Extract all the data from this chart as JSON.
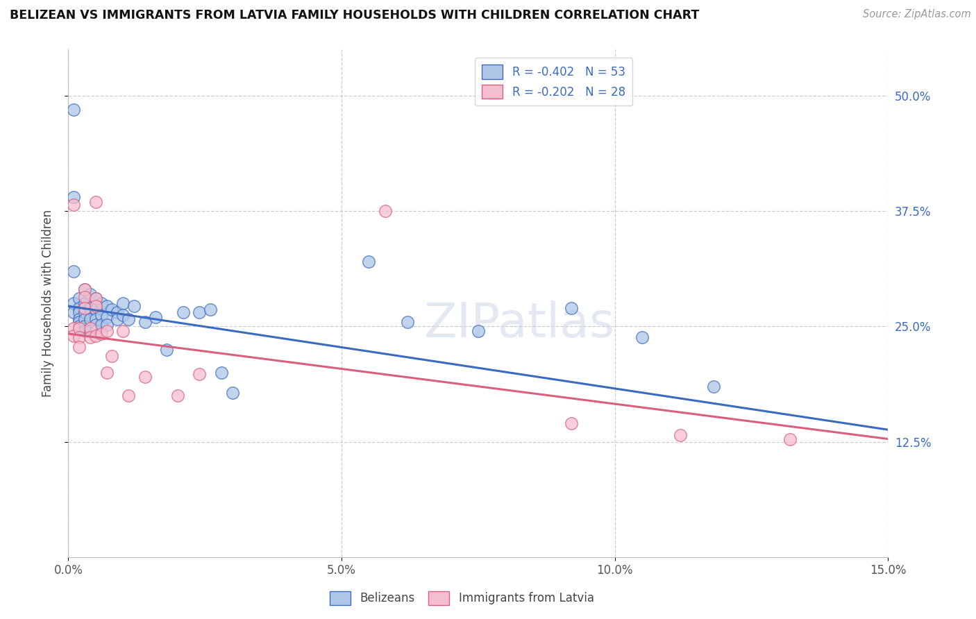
{
  "title": "BELIZEAN VS IMMIGRANTS FROM LATVIA FAMILY HOUSEHOLDS WITH CHILDREN CORRELATION CHART",
  "source": "Source: ZipAtlas.com",
  "ylabel": "Family Households with Children",
  "legend_blue_label": "R = -0.402   N = 53",
  "legend_pink_label": "R = -0.202   N = 28",
  "xlim": [
    0.0,
    0.15
  ],
  "ylim": [
    0.0,
    0.55
  ],
  "xticks": [
    0.0,
    0.05,
    0.1,
    0.15
  ],
  "xtick_labels": [
    "0.0%",
    "5.0%",
    "10.0%",
    "15.0%"
  ],
  "yticks": [
    0.125,
    0.25,
    0.375,
    0.5
  ],
  "ytick_labels": [
    "12.5%",
    "25.0%",
    "37.5%",
    "50.0%"
  ],
  "watermark": "ZIPatlas",
  "blue_color": "#aec6e8",
  "pink_color": "#f5bece",
  "blue_line_color": "#3a6bbf",
  "pink_line_color": "#d95f7f",
  "blue_trend_x0": 0.0,
  "blue_trend_y0": 0.272,
  "blue_trend_x1": 0.15,
  "blue_trend_y1": 0.138,
  "pink_trend_x0": 0.0,
  "pink_trend_y0": 0.242,
  "pink_trend_x1": 0.15,
  "pink_trend_y1": 0.128,
  "belizean_x": [
    0.001,
    0.001,
    0.001,
    0.001,
    0.001,
    0.002,
    0.002,
    0.002,
    0.002,
    0.002,
    0.002,
    0.003,
    0.003,
    0.003,
    0.003,
    0.003,
    0.003,
    0.004,
    0.004,
    0.004,
    0.004,
    0.005,
    0.005,
    0.005,
    0.005,
    0.005,
    0.006,
    0.006,
    0.006,
    0.007,
    0.007,
    0.007,
    0.008,
    0.009,
    0.009,
    0.01,
    0.01,
    0.011,
    0.012,
    0.014,
    0.016,
    0.018,
    0.021,
    0.024,
    0.026,
    0.028,
    0.03,
    0.055,
    0.062,
    0.075,
    0.092,
    0.105,
    0.118
  ],
  "belizean_y": [
    0.485,
    0.39,
    0.31,
    0.275,
    0.265,
    0.28,
    0.27,
    0.265,
    0.258,
    0.255,
    0.25,
    0.29,
    0.275,
    0.265,
    0.258,
    0.25,
    0.245,
    0.285,
    0.27,
    0.258,
    0.245,
    0.28,
    0.268,
    0.258,
    0.252,
    0.245,
    0.275,
    0.262,
    0.252,
    0.272,
    0.26,
    0.252,
    0.268,
    0.265,
    0.258,
    0.275,
    0.262,
    0.258,
    0.272,
    0.255,
    0.26,
    0.225,
    0.265,
    0.265,
    0.268,
    0.2,
    0.178,
    0.32,
    0.255,
    0.245,
    0.27,
    0.238,
    0.185
  ],
  "latvia_x": [
    0.001,
    0.001,
    0.001,
    0.002,
    0.002,
    0.002,
    0.003,
    0.003,
    0.003,
    0.004,
    0.004,
    0.005,
    0.005,
    0.005,
    0.005,
    0.006,
    0.007,
    0.007,
    0.008,
    0.01,
    0.011,
    0.014,
    0.02,
    0.024,
    0.058,
    0.092,
    0.112,
    0.132
  ],
  "latvia_y": [
    0.382,
    0.248,
    0.24,
    0.248,
    0.238,
    0.228,
    0.29,
    0.282,
    0.27,
    0.248,
    0.238,
    0.385,
    0.28,
    0.272,
    0.24,
    0.242,
    0.245,
    0.2,
    0.218,
    0.245,
    0.175,
    0.195,
    0.175,
    0.198,
    0.375,
    0.145,
    0.132,
    0.128
  ]
}
